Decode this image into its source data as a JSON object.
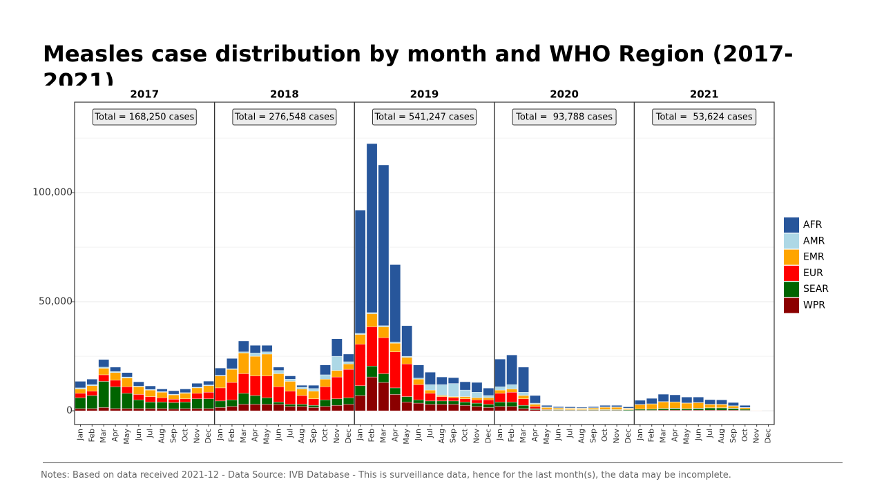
{
  "chart_data": {
    "type": "bar",
    "stacked": true,
    "title": "Measles case distribution by month and WHO Region (2017-2021)",
    "note": "Notes: Based on data received 2021-12 - Data Source: IVB Database - This is surveillance data, hence for the last month(s), the data may be incomplete.",
    "facets": [
      {
        "title": "2017",
        "annotation": "Total = 168,250 cases"
      },
      {
        "title": "2018",
        "annotation": "Total = 276,548 cases"
      },
      {
        "title": "2019",
        "annotation": "Total = 541,247 cases"
      },
      {
        "title": "2020",
        "annotation": "Total =  93,788 cases"
      },
      {
        "title": "2021",
        "annotation": "Total =  53,624 cases"
      }
    ],
    "categories": [
      "Jan",
      "Feb",
      "Mar",
      "Apr",
      "May",
      "Jun",
      "Jul",
      "Aug",
      "Sep",
      "Oct",
      "Nov",
      "Dec"
    ],
    "ylim": [
      -6300,
      141500
    ],
    "yticks": [
      0,
      {
        "value": 50000,
        "label": "50,000"
      },
      {
        "value": 100000,
        "label": "100,000"
      }
    ],
    "yminor": [
      25000,
      75000,
      125000
    ],
    "grid": true,
    "legend": "right",
    "series": [
      {
        "name": "AFR",
        "color": "#27569b",
        "values": [
          [
            3000,
            2500,
            3500,
            2000,
            2000,
            2000,
            1600,
            1200,
            1600,
            1700,
            1800,
            1800
          ],
          [
            3300,
            4700,
            5000,
            3500,
            3000,
            1500,
            1500,
            900,
            1500,
            4500,
            8000,
            3500
          ],
          [
            56500,
            77500,
            73700,
            35500,
            14000,
            6000,
            5700,
            3500,
            2700,
            3800,
            4500,
            3400
          ],
          [
            12700,
            13600,
            11500,
            3500,
            700,
            500,
            500,
            400,
            500,
            700,
            700,
            600
          ],
          [
            1900,
            2500,
            3400,
            3200,
            2700,
            2500,
            2100,
            2000,
            1500,
            1000,
            50,
            0
          ]
        ]
      },
      {
        "name": "AMR",
        "color": "#add8e6",
        "values": [
          [
            500,
            500,
            500,
            500,
            500,
            300,
            300,
            300,
            300,
            300,
            300,
            300
          ],
          [
            300,
            300,
            500,
            1500,
            1000,
            1500,
            1000,
            800,
            1200,
            2000,
            6500,
            1000
          ],
          [
            500,
            500,
            500,
            500,
            500,
            500,
            2500,
            5000,
            6000,
            3000,
            2500,
            1000
          ],
          [
            1500,
            2000,
            1500,
            500,
            300,
            200,
            200,
            200,
            200,
            200,
            200,
            200
          ],
          [
            100,
            100,
            100,
            100,
            100,
            100,
            100,
            100,
            100,
            100,
            50,
            0
          ]
        ]
      },
      {
        "name": "EMR",
        "color": "#ffa500",
        "values": [
          [
            2000,
            2500,
            3000,
            3500,
            4000,
            3500,
            3000,
            2500,
            2000,
            2500,
            2500,
            3000
          ],
          [
            5500,
            6000,
            9500,
            9000,
            10000,
            6000,
            4500,
            3000,
            3500,
            3500,
            3000,
            2500
          ],
          [
            4500,
            6000,
            5000,
            4000,
            3000,
            2500,
            1500,
            500,
            500,
            1000,
            1000,
            1000
          ],
          [
            1500,
            1500,
            1500,
            1000,
            800,
            600,
            600,
            500,
            600,
            1000,
            1000,
            500
          ],
          [
            2000,
            2300,
            3000,
            2800,
            2500,
            2500,
            1500,
            1500,
            1000,
            600,
            50,
            0
          ]
        ]
      },
      {
        "name": "EUR",
        "color": "#ff0000",
        "values": [
          [
            2000,
            2000,
            3000,
            3000,
            3000,
            2500,
            2500,
            2000,
            1500,
            1500,
            2500,
            3000
          ],
          [
            6000,
            8000,
            9000,
            9000,
            10000,
            7000,
            6000,
            4000,
            3000,
            6000,
            10000,
            13000
          ],
          [
            19000,
            18000,
            16500,
            16500,
            15000,
            7000,
            3500,
            2000,
            1500,
            1500,
            1500,
            2000
          ],
          [
            4000,
            4500,
            3000,
            1000,
            200,
            100,
            100,
            100,
            100,
            100,
            100,
            100
          ],
          [
            100,
            100,
            100,
            100,
            100,
            100,
            100,
            100,
            100,
            100,
            50,
            0
          ]
        ]
      },
      {
        "name": "SEAR",
        "color": "#006400",
        "values": [
          [
            5000,
            6000,
            12000,
            10000,
            7000,
            4000,
            3000,
            3000,
            3000,
            3000,
            4500,
            4500
          ],
          [
            3000,
            3000,
            5000,
            4000,
            3000,
            1000,
            1000,
            1000,
            1000,
            3000,
            3000,
            3000
          ],
          [
            4500,
            5000,
            4000,
            3000,
            2500,
            1500,
            1500,
            1500,
            1500,
            1500,
            1500,
            1500
          ],
          [
            2000,
            2000,
            1500,
            500,
            300,
            300,
            200,
            200,
            300,
            300,
            300,
            300
          ],
          [
            500,
            500,
            700,
            800,
            600,
            800,
            1000,
            1000,
            800,
            500,
            50,
            0
          ]
        ]
      },
      {
        "name": "WPR",
        "color": "#8b0000",
        "values": [
          [
            1000,
            1000,
            1500,
            1000,
            1000,
            1000,
            1000,
            1000,
            800,
            1000,
            1000,
            1000
          ],
          [
            1500,
            2000,
            3000,
            3000,
            3000,
            3000,
            2000,
            2000,
            1500,
            2000,
            2500,
            3000
          ],
          [
            7000,
            15500,
            13000,
            7500,
            4000,
            3500,
            3000,
            3000,
            3000,
            2500,
            2000,
            1500
          ],
          [
            2000,
            2000,
            1000,
            500,
            200,
            200,
            200,
            200,
            200,
            200,
            200,
            100
          ],
          [
            200,
            200,
            300,
            300,
            300,
            300,
            300,
            300,
            300,
            200,
            50,
            0
          ]
        ]
      }
    ]
  }
}
